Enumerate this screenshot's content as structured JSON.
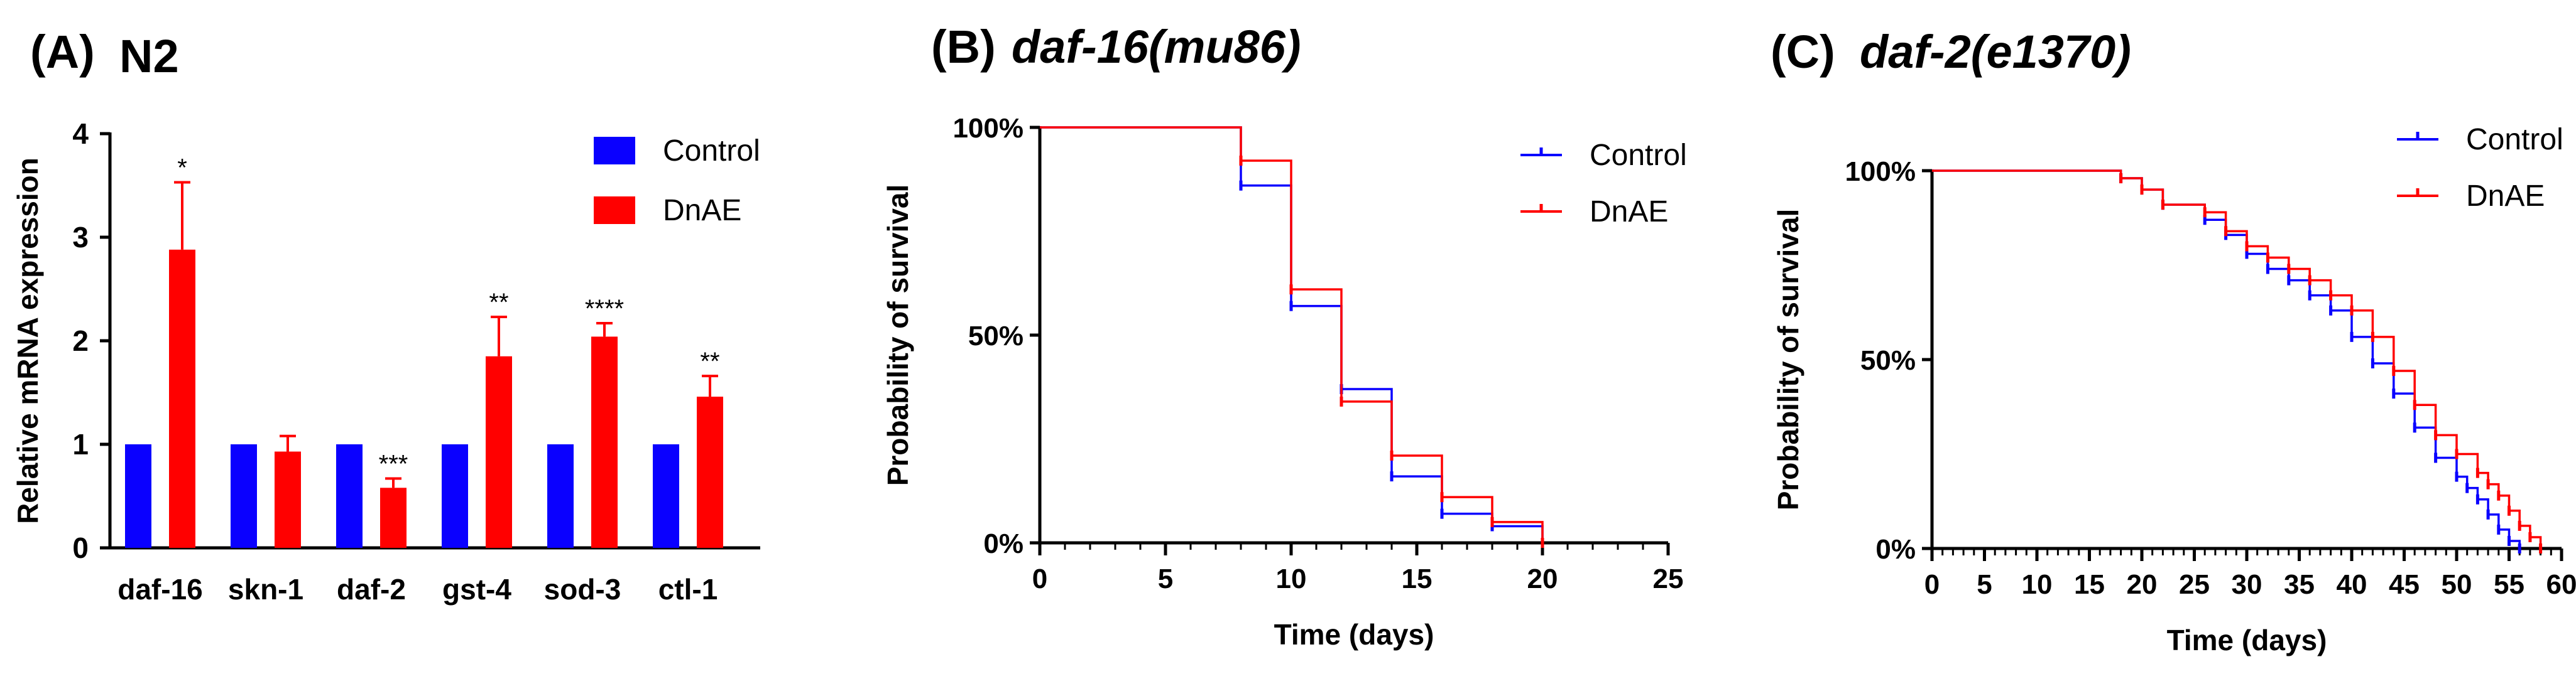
{
  "colors": {
    "control": "#0a00ff",
    "treated": "#ff0000",
    "axis": "#000000"
  },
  "chart_data": [
    {
      "id": "A",
      "type": "bar",
      "panel_letter": "(A)",
      "title": "N2",
      "ylabel": "Relative mRNA expression",
      "xlabel": "",
      "ylim": [
        0,
        4
      ],
      "yticks": [
        "0",
        "1",
        "2",
        "3",
        "4"
      ],
      "categories": [
        "daf-16",
        "skn-1",
        "daf-2",
        "gst-4",
        "sod-3",
        "ctl-1"
      ],
      "series": [
        {
          "name": "Control",
          "values": [
            1,
            1,
            1,
            1,
            1,
            1
          ],
          "errors": [
            0,
            0,
            0,
            0,
            0,
            0
          ]
        },
        {
          "name": "DnAE",
          "values": [
            2.88,
            0.93,
            0.58,
            1.85,
            2.04,
            1.46
          ],
          "errors": [
            0.65,
            0.15,
            0.09,
            0.38,
            0.13,
            0.2
          ]
        }
      ],
      "significance": [
        "*",
        "",
        "***",
        "**",
        "****",
        "**"
      ],
      "legend": [
        "Control",
        "DnAE"
      ],
      "legend_position": "top-right"
    },
    {
      "id": "B",
      "type": "line",
      "subtype": "survival-step",
      "panel_letter": "(B)",
      "title": "daf-16(mu86)",
      "xlabel": "Time (days)",
      "ylabel": "Probability of survival",
      "xlim": [
        0,
        25
      ],
      "ylim": [
        0,
        100
      ],
      "xticks": [
        "0",
        "5",
        "10",
        "15",
        "20",
        "25"
      ],
      "yticks": [
        "0%",
        "50%",
        "100%"
      ],
      "series": [
        {
          "name": "Control",
          "x": [
            0,
            8,
            10,
            12,
            14,
            16,
            18,
            20
          ],
          "y": [
            100,
            86,
            57,
            37,
            16,
            7,
            4,
            0
          ]
        },
        {
          "name": "DnAE",
          "x": [
            0,
            8,
            10,
            12,
            14,
            16,
            18,
            20
          ],
          "y": [
            100,
            92,
            61,
            34,
            21,
            11,
            5,
            0
          ]
        }
      ],
      "legend": [
        "Control",
        "DnAE"
      ],
      "legend_position": "top-right"
    },
    {
      "id": "C",
      "type": "line",
      "subtype": "survival-step",
      "panel_letter": "(C)",
      "title": "daf-2(e1370)",
      "xlabel": "Time (days)",
      "ylabel": "Probability of survival",
      "xlim": [
        0,
        60
      ],
      "ylim": [
        0,
        100
      ],
      "xticks": [
        "0",
        "5",
        "10",
        "15",
        "20",
        "25",
        "30",
        "35",
        "40",
        "45",
        "50",
        "55",
        "60"
      ],
      "yticks": [
        "0%",
        "50%",
        "100%"
      ],
      "series": [
        {
          "name": "Control",
          "x": [
            0,
            18,
            20,
            22,
            26,
            28,
            30,
            32,
            34,
            36,
            38,
            40,
            42,
            44,
            46,
            48,
            50,
            51,
            52,
            53,
            54,
            55,
            56
          ],
          "y": [
            100,
            98,
            95,
            91,
            87,
            83,
            78,
            74,
            71,
            67,
            63,
            56,
            49,
            41,
            32,
            24,
            19,
            16,
            13,
            9,
            5,
            2,
            0
          ]
        },
        {
          "name": "DnAE",
          "x": [
            0,
            18,
            20,
            22,
            26,
            28,
            30,
            32,
            34,
            36,
            38,
            40,
            42,
            44,
            46,
            48,
            50,
            52,
            53,
            54,
            55,
            56,
            57,
            58
          ],
          "y": [
            100,
            98,
            95,
            91,
            89,
            84,
            80,
            77,
            74,
            71,
            67,
            63,
            56,
            47,
            38,
            30,
            25,
            20,
            17,
            14,
            10,
            6,
            3,
            0
          ]
        }
      ],
      "legend": [
        "Control",
        "DnAE"
      ],
      "legend_position": "top-right"
    }
  ]
}
